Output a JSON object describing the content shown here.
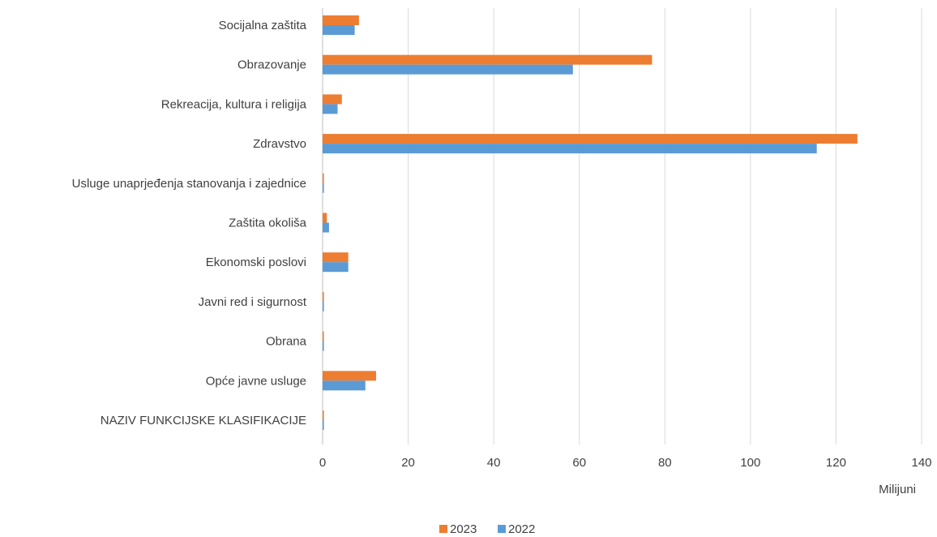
{
  "chart_data": {
    "type": "bar",
    "orientation": "horizontal",
    "categories": [
      "Socijalna zaštita",
      "Obrazovanje",
      "Rekreacija, kultura i religija",
      "Zdravstvo",
      "Usluge unaprjeđenja stanovanja i zajednice",
      "Zaštita okoliša",
      "Ekonomski poslovi",
      "Javni red i sigurnost",
      "Obrana",
      "Opće javne usluge",
      "NAZIV FUNKCIJSKE KLASIFIKACIJE"
    ],
    "series": [
      {
        "name": "2023",
        "color": "#ed7d31",
        "values": [
          8.5,
          77,
          4.5,
          125,
          0.3,
          1,
          6,
          0.3,
          0.3,
          12.5,
          0.3
        ]
      },
      {
        "name": "2022",
        "color": "#5b9bd5",
        "values": [
          7.5,
          58.5,
          3.5,
          115.5,
          0.3,
          1.5,
          6,
          0.3,
          0.3,
          10,
          0.3
        ]
      }
    ],
    "xlim": [
      0,
      140
    ],
    "xticks": [
      "0",
      "20",
      "40",
      "60",
      "80",
      "100",
      "120",
      "140"
    ],
    "xunit": "Milijuni",
    "grid": "vertical",
    "legend_position": "bottom"
  }
}
